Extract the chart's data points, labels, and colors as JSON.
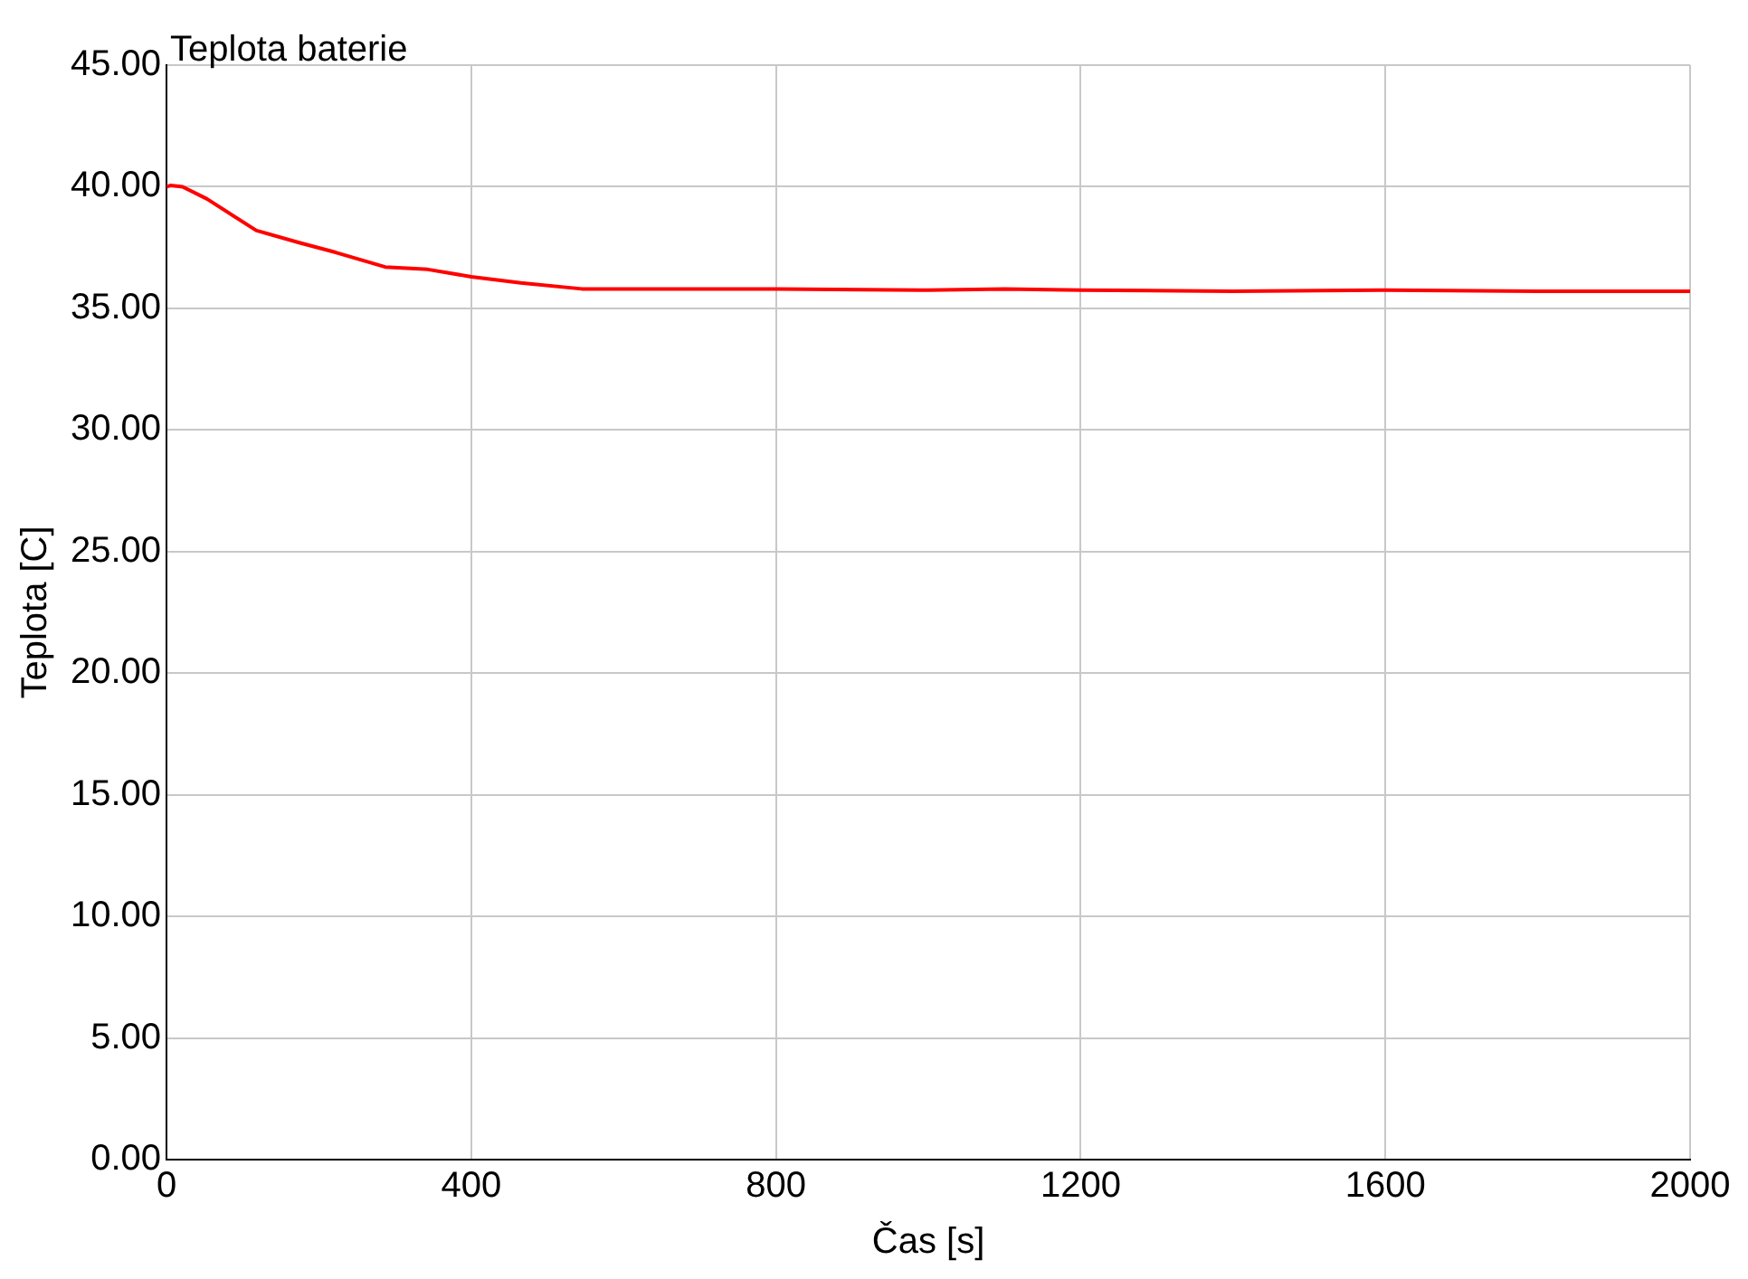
{
  "chart_data": {
    "type": "line",
    "title": "Teplota baterie",
    "xlabel": "Čas [s]",
    "ylabel": "Teplota [C]",
    "x": [
      0,
      5,
      21,
      53,
      118,
      174,
      222,
      287,
      343,
      400,
      465,
      545,
      600,
      800,
      1000,
      1100,
      1200,
      1400,
      1600,
      1800,
      2000
    ],
    "series": [
      {
        "color": "#ff0000",
        "values": [
          40.0,
          40.05,
          40.0,
          39.5,
          38.2,
          37.7,
          37.3,
          36.7,
          36.6,
          36.3,
          36.05,
          35.8,
          35.8,
          35.8,
          35.75,
          35.8,
          35.75,
          35.7,
          35.75,
          35.7,
          35.7
        ]
      }
    ],
    "xlim": [
      0,
      2000
    ],
    "xticks": [
      0,
      400,
      800,
      1200,
      1600,
      2000
    ],
    "ylim": [
      0,
      45
    ],
    "yticks": [
      {
        "value": 0,
        "label": "0.00"
      },
      {
        "value": 5,
        "label": "5.00"
      },
      {
        "value": 10,
        "label": "10.00"
      },
      {
        "value": 15,
        "label": "15.00"
      },
      {
        "value": 20,
        "label": "20.00"
      },
      {
        "value": 25,
        "label": "25.00"
      },
      {
        "value": 30,
        "label": "30.00"
      },
      {
        "value": 35,
        "label": "35.00"
      },
      {
        "value": 40,
        "label": "40.00"
      },
      {
        "value": 45,
        "label": "45.00"
      }
    ],
    "grid": true,
    "legend": false,
    "marker": "none",
    "line_style": "solid"
  }
}
